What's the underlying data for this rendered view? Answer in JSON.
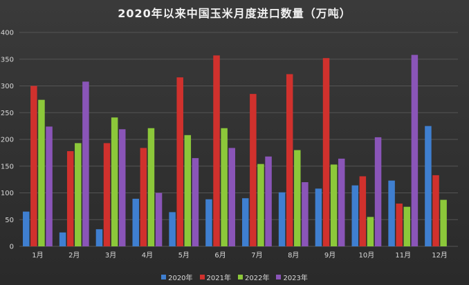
{
  "chart_data": {
    "type": "bar",
    "title": "2020年以来中国玉米月度进口数量（万吨）",
    "categories": [
      "1月",
      "2月",
      "3月",
      "4月",
      "5月",
      "6月",
      "7月",
      "8月",
      "9月",
      "10月",
      "11月",
      "12月"
    ],
    "yticks": [
      0,
      50,
      100,
      150,
      200,
      250,
      300,
      350,
      400
    ],
    "ylim": [
      0,
      400
    ],
    "grid": true,
    "legend_position": "bottom",
    "series": [
      {
        "name": "2020年",
        "color": "#3f7fd0",
        "values": [
          65,
          26,
          32,
          89,
          64,
          88,
          90,
          101,
          108,
          114,
          123,
          225
        ]
      },
      {
        "name": "2021年",
        "color": "#d0312d",
        "values": [
          300,
          178,
          193,
          184,
          316,
          357,
          285,
          322,
          352,
          131,
          80,
          133
        ]
      },
      {
        "name": "2022年",
        "color": "#8cc83a",
        "values": [
          274,
          193,
          241,
          221,
          208,
          221,
          154,
          180,
          153,
          55,
          74,
          87
        ]
      },
      {
        "name": "2023年",
        "color": "#8a55b8",
        "values": [
          224,
          308,
          219,
          100,
          165,
          184,
          168,
          120,
          164,
          204,
          358,
          null
        ]
      }
    ]
  }
}
